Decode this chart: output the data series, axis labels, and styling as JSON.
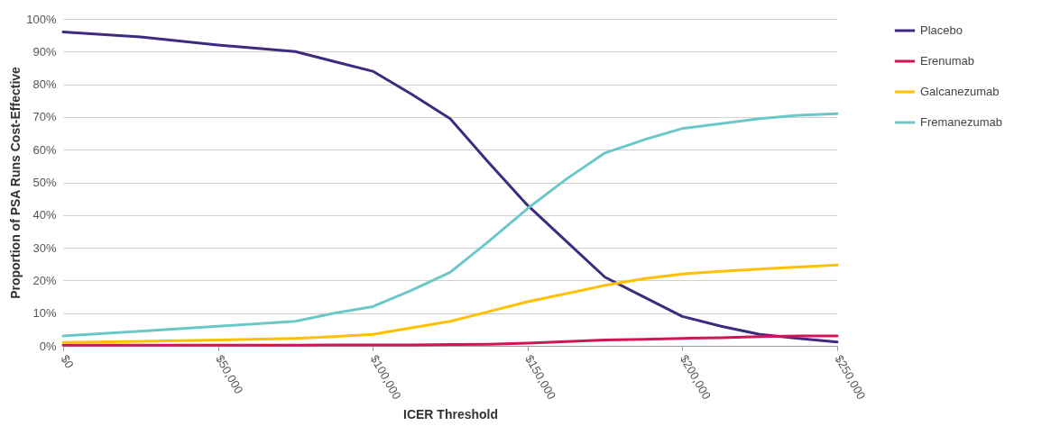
{
  "chart_data": {
    "type": "line",
    "xlabel": "ICER Threshold",
    "ylabel": "Proportion of PSA Runs Cost-Effective",
    "xlim": [
      0,
      250000
    ],
    "ylim": [
      0,
      100
    ],
    "xticks": [
      {
        "value": 0,
        "label": "$0"
      },
      {
        "value": 50000,
        "label": "$50,000"
      },
      {
        "value": 100000,
        "label": "$100,000"
      },
      {
        "value": 150000,
        "label": "$150,000"
      },
      {
        "value": 200000,
        "label": "$200,000"
      },
      {
        "value": 250000,
        "label": "$250,000"
      }
    ],
    "yticks": [
      {
        "value": 0,
        "label": "0%"
      },
      {
        "value": 10,
        "label": "10%"
      },
      {
        "value": 20,
        "label": "20%"
      },
      {
        "value": 30,
        "label": "30%"
      },
      {
        "value": 40,
        "label": "40%"
      },
      {
        "value": 50,
        "label": "50%"
      },
      {
        "value": 60,
        "label": "60%"
      },
      {
        "value": 70,
        "label": "70%"
      },
      {
        "value": 80,
        "label": "80%"
      },
      {
        "value": 90,
        "label": "90%"
      },
      {
        "value": 100,
        "label": "100%"
      }
    ],
    "x": [
      0,
      25000,
      50000,
      75000,
      87500,
      100000,
      112500,
      125000,
      137500,
      150000,
      162500,
      175000,
      187500,
      200000,
      212500,
      225000,
      237500,
      250000
    ],
    "grid": "y",
    "legend": "right",
    "line_style": "solid",
    "series": [
      {
        "name": "Placebo",
        "color": "#3f2a7f",
        "values": [
          96,
          94.5,
          92,
          90,
          87,
          84,
          77,
          69.5,
          56,
          43,
          32,
          21,
          15,
          9,
          6,
          3.5,
          2.3,
          1.2
        ]
      },
      {
        "name": "Erenumab",
        "color": "#d4145a",
        "values": [
          0.2,
          0.2,
          0.2,
          0.2,
          0.3,
          0.3,
          0.3,
          0.4,
          0.5,
          0.8,
          1.3,
          1.8,
          2,
          2.3,
          2.5,
          2.8,
          3,
          3
        ]
      },
      {
        "name": "Galcanezumab",
        "color": "#ffc000",
        "values": [
          1,
          1.4,
          1.8,
          2.3,
          2.8,
          3.5,
          5.5,
          7.5,
          10.5,
          13.5,
          16,
          18.5,
          20.5,
          22,
          22.8,
          23.5,
          24.1,
          24.7
        ]
      },
      {
        "name": "Fremanezumab",
        "color": "#6cc8c8",
        "values": [
          3,
          4.5,
          6,
          7.5,
          10,
          12,
          17,
          22.5,
          32,
          42,
          51,
          59,
          63,
          66.5,
          68,
          69.5,
          70.5,
          71
        ]
      }
    ]
  }
}
